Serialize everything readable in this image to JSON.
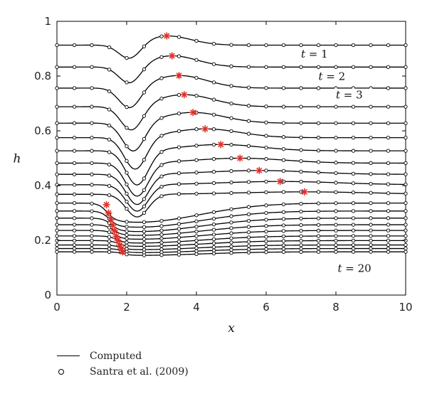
{
  "chart_data": {
    "type": "line",
    "xlabel": "x",
    "ylabel": "h",
    "xlim": [
      0,
      10
    ],
    "ylim": [
      0,
      1
    ],
    "xticks": [
      "0",
      "2",
      "4",
      "6",
      "8",
      "10"
    ],
    "yticks": [
      "0",
      "0.2",
      "0.4",
      "0.6",
      "0.8",
      "1"
    ],
    "annotations": [
      "t = 1",
      "t = 2",
      "t = 3",
      "t = 20"
    ],
    "legend": {
      "placement": "below",
      "entries": [
        {
          "label": "Computed",
          "marker": "line"
        },
        {
          "label": "Santra et al. (2009)",
          "marker": "circle"
        }
      ]
    },
    "colors": {
      "curve": "#000000",
      "circles": "#000000",
      "peak_marker": "#e0302a"
    },
    "profile_shape": {
      "x": [
        0,
        0.5,
        1,
        1.5,
        1.8,
        2,
        2.3,
        2.6,
        3,
        3.5,
        4,
        5,
        6,
        7,
        8,
        9,
        10
      ],
      "shape": [
        0,
        0,
        0.005,
        -0.01,
        -0.05,
        -0.08,
        -0.08,
        -0.04,
        0.02,
        0.05,
        0.045,
        0.03,
        0.02,
        0.01,
        0.005,
        0,
        0
      ]
    },
    "series": [
      {
        "t": 1,
        "baseline": 0.913,
        "trough_x": 2.1,
        "trough_h": 0.855,
        "peak_x": 3.15,
        "peak_h": 0.935
      },
      {
        "t": 2,
        "baseline": 0.833,
        "trough_x": 2.1,
        "trough_h": 0.765,
        "peak_x": 3.3,
        "peak_h": 0.862
      },
      {
        "t": 3,
        "baseline": 0.756,
        "trough_x": 2.1,
        "trough_h": 0.675,
        "peak_x": 3.5,
        "peak_h": 0.79
      },
      {
        "t": 4,
        "baseline": 0.688,
        "trough_x": 2.15,
        "trough_h": 0.595,
        "peak_x": 3.65,
        "peak_h": 0.72
      },
      {
        "t": 5,
        "baseline": 0.628,
        "trough_x": 2.2,
        "trough_h": 0.52,
        "peak_x": 3.9,
        "peak_h": 0.655
      },
      {
        "t": 6,
        "baseline": 0.575,
        "trough_x": 2.25,
        "trough_h": 0.456,
        "peak_x": 4.25,
        "peak_h": 0.595
      },
      {
        "t": 7,
        "baseline": 0.527,
        "trough_x": 2.3,
        "trough_h": 0.4,
        "peak_x": 4.7,
        "peak_h": 0.538
      },
      {
        "t": 8,
        "baseline": 0.482,
        "trough_x": 2.3,
        "trough_h": 0.36,
        "peak_x": 5.25,
        "peak_h": 0.488
      },
      {
        "t": 9,
        "baseline": 0.441,
        "trough_x": 2.3,
        "trough_h": 0.33,
        "peak_x": 5.8,
        "peak_h": 0.443
      },
      {
        "t": 10,
        "baseline": 0.403,
        "trough_x": 2.3,
        "trough_h": 0.306,
        "peak_x": 6.4,
        "peak_h": 0.403
      },
      {
        "t": 11,
        "baseline": 0.368,
        "trough_x": 2.3,
        "trough_h": 0.285,
        "peak_x": 7.1,
        "peak_h": 0.365
      },
      {
        "t": 12,
        "baseline": 0.336,
        "trough_x": 2.3,
        "trough_h": 0.266,
        "peak_x": 1.42,
        "peak_h": 0.33
      },
      {
        "t": 13,
        "baseline": 0.307,
        "trough_x": 2.3,
        "trough_h": 0.248,
        "peak_x": 1.48,
        "peak_h": 0.3
      },
      {
        "t": 14,
        "baseline": 0.281,
        "trough_x": 2.3,
        "trough_h": 0.232,
        "peak_x": 1.55,
        "peak_h": 0.275
      },
      {
        "t": 15,
        "baseline": 0.257,
        "trough_x": 2.3,
        "trough_h": 0.218,
        "peak_x": 1.6,
        "peak_h": 0.255
      },
      {
        "t": 16,
        "baseline": 0.236,
        "trough_x": 2.3,
        "trough_h": 0.204,
        "peak_x": 1.65,
        "peak_h": 0.235
      },
      {
        "t": 17,
        "baseline": 0.216,
        "trough_x": 2.3,
        "trough_h": 0.19,
        "peak_x": 1.7,
        "peak_h": 0.215
      },
      {
        "t": 18,
        "baseline": 0.199,
        "trough_x": 2.3,
        "trough_h": 0.178,
        "peak_x": 1.75,
        "peak_h": 0.2
      },
      {
        "t": 19,
        "baseline": 0.183,
        "trough_x": 2.3,
        "trough_h": 0.166,
        "peak_x": 1.8,
        "peak_h": 0.183
      },
      {
        "t": 20,
        "baseline": 0.17,
        "trough_x": 2.3,
        "trough_h": 0.155,
        "peak_x": 1.85,
        "peak_h": 0.17
      },
      {
        "t": 21,
        "baseline": 0.158,
        "trough_x": 2.3,
        "trough_h": 0.145,
        "peak_x": 1.88,
        "peak_h": 0.158
      }
    ],
    "circle_x": [
      0,
      0.5,
      1,
      1.5,
      2,
      2.5,
      3,
      3.5,
      4,
      4.5,
      5,
      5.5,
      6,
      6.5,
      7,
      7.5,
      8,
      8.5,
      9,
      9.5,
      10
    ]
  }
}
